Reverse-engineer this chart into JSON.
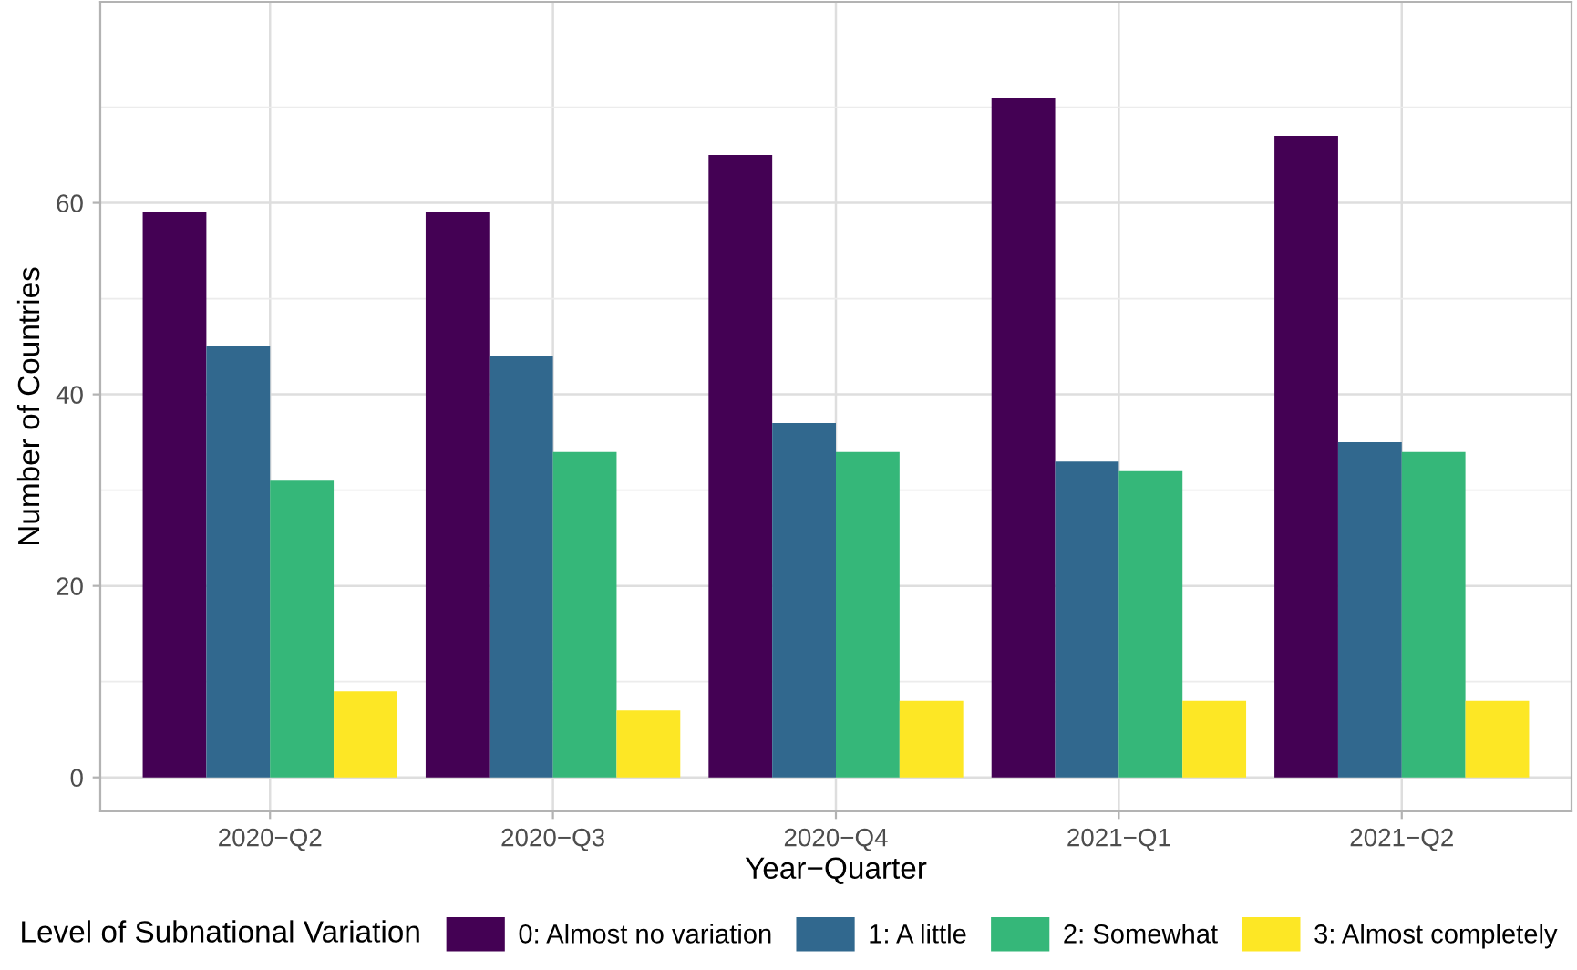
{
  "chart_data": {
    "type": "bar",
    "xlabel": "Year−Quarter",
    "ylabel": "Number of Countries",
    "legend_title": "Level of Subnational Variation",
    "categories": [
      "2020−Q2",
      "2020−Q3",
      "2020−Q4",
      "2021−Q1",
      "2021−Q2"
    ],
    "series": [
      {
        "name": "0: Almost no variation",
        "color": "#440154",
        "values": [
          59,
          59,
          65,
          71,
          67
        ]
      },
      {
        "name": "1: A little",
        "color": "#31688e",
        "values": [
          45,
          44,
          37,
          33,
          35
        ]
      },
      {
        "name": "2: Somewhat",
        "color": "#35b779",
        "values": [
          31,
          34,
          34,
          32,
          34
        ]
      },
      {
        "name": "3: Almost completely",
        "color": "#fde725",
        "values": [
          9,
          7,
          8,
          8,
          8
        ]
      }
    ],
    "ylim": [
      -3.55,
      81
    ],
    "yticks": [
      0,
      {
        "value": 10,
        "label": null
      },
      20,
      {
        "value": 30,
        "label": null
      },
      40,
      {
        "value": 50,
        "label": null
      },
      60,
      {
        "value": 70,
        "label": null
      }
    ],
    "grid": true,
    "legend": "bottom"
  }
}
